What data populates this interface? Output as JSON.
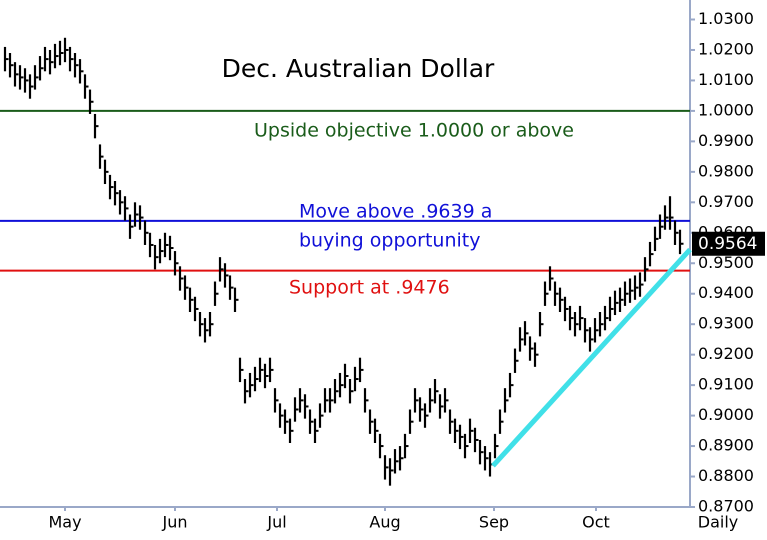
{
  "chart_data": {
    "type": "ohlc",
    "title": "Dec. Australian Dollar",
    "x_label": "Daily",
    "color": "#000000",
    "x": [
      0,
      1,
      2,
      3,
      4,
      5,
      6,
      7,
      8,
      9,
      10,
      11,
      12,
      13,
      14,
      15,
      16,
      17,
      18,
      19,
      20,
      21,
      22,
      23,
      24,
      25,
      26,
      27,
      28,
      29,
      30,
      31,
      32,
      33,
      34,
      35,
      36,
      37,
      38,
      39,
      40,
      41,
      42,
      43,
      44,
      45,
      46,
      47,
      48,
      49,
      50,
      51,
      52,
      53,
      54,
      55,
      56,
      57,
      58,
      59,
      60,
      61,
      62,
      63,
      64,
      65,
      66,
      67,
      68,
      69,
      70,
      71,
      72,
      73,
      74,
      75,
      76,
      77,
      78,
      79,
      80,
      81,
      82,
      83,
      84,
      85,
      86,
      87,
      88,
      89,
      90,
      91,
      92,
      93,
      94,
      95,
      96,
      97,
      98,
      99,
      100,
      101,
      102,
      103,
      104,
      105,
      106,
      107,
      108,
      109,
      110,
      111,
      112,
      113,
      114,
      115,
      116,
      117,
      118,
      119,
      120,
      121,
      122,
      123,
      124,
      125,
      126,
      127,
      128,
      129,
      130,
      131,
      132,
      133,
      134,
      135
    ],
    "high": [
      1.021,
      1.019,
      1.016,
      1.015,
      1.014,
      1.012,
      1.015,
      1.018,
      1.021,
      1.02,
      1.022,
      1.023,
      1.024,
      1.021,
      1.019,
      1.017,
      1.012,
      1.007,
      0.999,
      0.989,
      0.984,
      0.979,
      0.977,
      0.974,
      0.972,
      0.966,
      0.97,
      0.969,
      0.964,
      0.96,
      0.956,
      0.958,
      0.96,
      0.959,
      0.954,
      0.949,
      0.946,
      0.942,
      0.939,
      0.934,
      0.932,
      0.934,
      0.944,
      0.952,
      0.95,
      0.946,
      0.942,
      0.919,
      0.912,
      0.914,
      0.916,
      0.919,
      0.917,
      0.919,
      0.909,
      0.904,
      0.902,
      0.899,
      0.906,
      0.909,
      0.907,
      0.902,
      0.899,
      0.904,
      0.909,
      0.909,
      0.912,
      0.914,
      0.917,
      0.912,
      0.916,
      0.919,
      0.909,
      0.902,
      0.899,
      0.894,
      0.887,
      0.886,
      0.889,
      0.89,
      0.894,
      0.902,
      0.909,
      0.906,
      0.904,
      0.909,
      0.912,
      0.907,
      0.909,
      0.902,
      0.899,
      0.897,
      0.894,
      0.899,
      0.896,
      0.892,
      0.89,
      0.888,
      0.894,
      0.902,
      0.909,
      0.914,
      0.922,
      0.929,
      0.931,
      0.926,
      0.924,
      0.934,
      0.944,
      0.949,
      0.944,
      0.942,
      0.939,
      0.936,
      0.934,
      0.936,
      0.932,
      0.929,
      0.932,
      0.934,
      0.936,
      0.939,
      0.941,
      0.942,
      0.944,
      0.945,
      0.946,
      0.947,
      0.952,
      0.957,
      0.962,
      0.966,
      0.969,
      0.972,
      0.964,
      0.961
    ],
    "low": [
      1.013,
      1.011,
      1.008,
      1.007,
      1.006,
      1.004,
      1.007,
      1.01,
      1.013,
      1.012,
      1.014,
      1.015,
      1.016,
      1.013,
      1.011,
      1.009,
      1.004,
      0.999,
      0.991,
      0.981,
      0.976,
      0.971,
      0.969,
      0.966,
      0.964,
      0.958,
      0.962,
      0.961,
      0.956,
      0.952,
      0.948,
      0.95,
      0.952,
      0.951,
      0.946,
      0.941,
      0.938,
      0.934,
      0.931,
      0.926,
      0.924,
      0.926,
      0.936,
      0.944,
      0.942,
      0.938,
      0.934,
      0.911,
      0.904,
      0.906,
      0.908,
      0.911,
      0.909,
      0.911,
      0.901,
      0.896,
      0.894,
      0.891,
      0.898,
      0.901,
      0.899,
      0.894,
      0.891,
      0.896,
      0.901,
      0.901,
      0.904,
      0.906,
      0.909,
      0.904,
      0.908,
      0.911,
      0.901,
      0.894,
      0.891,
      0.886,
      0.879,
      0.877,
      0.881,
      0.882,
      0.886,
      0.894,
      0.901,
      0.898,
      0.896,
      0.901,
      0.904,
      0.899,
      0.901,
      0.894,
      0.891,
      0.889,
      0.886,
      0.891,
      0.888,
      0.884,
      0.882,
      0.88,
      0.886,
      0.894,
      0.901,
      0.906,
      0.914,
      0.921,
      0.923,
      0.918,
      0.916,
      0.926,
      0.936,
      0.941,
      0.936,
      0.934,
      0.931,
      0.928,
      0.926,
      0.928,
      0.924,
      0.921,
      0.924,
      0.926,
      0.928,
      0.931,
      0.933,
      0.934,
      0.936,
      0.937,
      0.938,
      0.939,
      0.944,
      0.949,
      0.954,
      0.958,
      0.961,
      0.961,
      0.956,
      0.953
    ],
    "close": [
      1.017,
      1.015,
      1.012,
      1.011,
      1.01,
      1.008,
      1.011,
      1.014,
      1.017,
      1.016,
      1.018,
      1.019,
      1.02,
      1.017,
      1.015,
      1.013,
      1.008,
      1.003,
      0.995,
      0.985,
      0.98,
      0.975,
      0.973,
      0.97,
      0.968,
      0.962,
      0.966,
      0.965,
      0.96,
      0.956,
      0.952,
      0.954,
      0.956,
      0.955,
      0.95,
      0.945,
      0.942,
      0.938,
      0.935,
      0.93,
      0.928,
      0.93,
      0.94,
      0.948,
      0.946,
      0.942,
      0.938,
      0.915,
      0.908,
      0.91,
      0.912,
      0.915,
      0.913,
      0.915,
      0.905,
      0.9,
      0.898,
      0.895,
      0.902,
      0.905,
      0.903,
      0.898,
      0.895,
      0.9,
      0.905,
      0.905,
      0.908,
      0.91,
      0.913,
      0.908,
      0.912,
      0.915,
      0.905,
      0.898,
      0.895,
      0.89,
      0.883,
      0.882,
      0.885,
      0.886,
      0.89,
      0.898,
      0.905,
      0.902,
      0.9,
      0.905,
      0.908,
      0.903,
      0.905,
      0.898,
      0.895,
      0.893,
      0.89,
      0.895,
      0.892,
      0.888,
      0.886,
      0.884,
      0.89,
      0.898,
      0.905,
      0.91,
      0.918,
      0.925,
      0.927,
      0.922,
      0.92,
      0.93,
      0.94,
      0.945,
      0.94,
      0.938,
      0.935,
      0.932,
      0.93,
      0.932,
      0.928,
      0.925,
      0.928,
      0.93,
      0.932,
      0.935,
      0.937,
      0.938,
      0.94,
      0.941,
      0.942,
      0.943,
      0.948,
      0.953,
      0.958,
      0.962,
      0.965,
      0.965,
      0.96,
      0.9564
    ],
    "xlim": [
      -1,
      137
    ],
    "xticks": [
      {
        "value": 12,
        "label": "May"
      },
      {
        "value": 34,
        "label": "Jun"
      },
      {
        "value": 54.4,
        "label": "Jul"
      },
      {
        "value": 76,
        "label": "Aug"
      },
      {
        "value": 97.8,
        "label": "Sep"
      },
      {
        "value": 118.2,
        "label": "Oct"
      }
    ],
    "ylim": [
      0.87,
      1.0364
    ],
    "yticks": [
      {
        "value": 0.87,
        "label": "0.8700"
      },
      {
        "value": 0.88,
        "label": "0.8800"
      },
      {
        "value": 0.89,
        "label": "0.8900"
      },
      {
        "value": 0.9,
        "label": "0.9000"
      },
      {
        "value": 0.91,
        "label": "0.9100"
      },
      {
        "value": 0.92,
        "label": "0.9200"
      },
      {
        "value": 0.93,
        "label": "0.9300"
      },
      {
        "value": 0.94,
        "label": "0.9400"
      },
      {
        "value": 0.95,
        "label": "0.9500"
      },
      {
        "value": 0.96,
        "label": "0.9600"
      },
      {
        "value": 0.97,
        "label": "0.9700"
      },
      {
        "value": 0.98,
        "label": "0.9800"
      },
      {
        "value": 0.99,
        "label": "0.9900"
      },
      {
        "value": 1.0,
        "label": "1.0000"
      },
      {
        "value": 1.01,
        "label": "1.0100"
      },
      {
        "value": 1.02,
        "label": "1.0200"
      },
      {
        "value": 1.03,
        "label": "1.0300"
      }
    ],
    "levels": [
      {
        "value": 1.0,
        "color": "#1a5c1a",
        "text": [
          "Upside objective 1.0000 or above"
        ]
      },
      {
        "value": 0.9639,
        "color": "#1010d8",
        "text": [
          "Move above .9639 a",
          "buying opportunity"
        ]
      },
      {
        "value": 0.9476,
        "color": "#e01010",
        "text": [
          "Support at .9476"
        ]
      }
    ],
    "trendline": {
      "color": "#40e0e8",
      "x": [
        97.6,
        137
      ],
      "y": [
        0.8835,
        0.9545
      ]
    },
    "last_price": {
      "value": 0.9564,
      "label": "0.9564"
    }
  }
}
